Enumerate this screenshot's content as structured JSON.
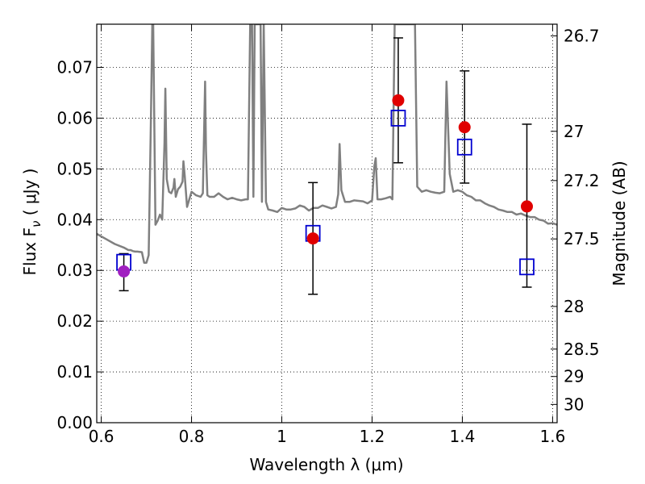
{
  "chart_data": {
    "type": "scatter",
    "xlabel": "Wavelength  λ (μm)",
    "ylabel": "Flux  F",
    "ylabel_sub": "ν",
    "ylabel_unit": " ( μJy )",
    "ylabel_right": "Magnitude (AB)",
    "xlim": [
      0.59,
      1.61
    ],
    "ylim": [
      0.0,
      0.0785
    ],
    "grid": true,
    "grid_style": "dotted",
    "x_ticks": [
      0.6,
      0.8,
      1.0,
      1.2,
      1.4,
      1.6
    ],
    "x_tick_labels": [
      "0.6",
      "0.8",
      "1",
      "1.2",
      "1.4",
      "1.6"
    ],
    "y_ticks": [
      0.0,
      0.01,
      0.02,
      0.03,
      0.04,
      0.05,
      0.06,
      0.07
    ],
    "y_tick_labels": [
      "0.00",
      "0.01",
      "0.02",
      "0.03",
      "0.04",
      "0.05",
      "0.06",
      "0.07"
    ],
    "right_ticks": [
      {
        "flux": 0.0762,
        "label": "26.7"
      },
      {
        "flux": 0.0574,
        "label": "27"
      },
      {
        "flux": 0.0477,
        "label": "27.2"
      },
      {
        "flux": 0.0362,
        "label": "27.5"
      },
      {
        "flux": 0.0229,
        "label": "28"
      },
      {
        "flux": 0.0145,
        "label": "28.5"
      },
      {
        "flux": 0.0091,
        "label": "29"
      },
      {
        "flux": 0.0036,
        "label": "30"
      }
    ],
    "series": [
      {
        "style": "model",
        "color": "#808080",
        "x": [
          0.59,
          0.61,
          0.63,
          0.65,
          0.66,
          0.665,
          0.67,
          0.675,
          0.68,
          0.69,
          0.695,
          0.7,
          0.705,
          0.71,
          0.713,
          0.715,
          0.72,
          0.725,
          0.73,
          0.735,
          0.74,
          0.742,
          0.745,
          0.75,
          0.755,
          0.76,
          0.762,
          0.765,
          0.77,
          0.775,
          0.78,
          0.782,
          0.785,
          0.79,
          0.8,
          0.81,
          0.82,
          0.825,
          0.83,
          0.832,
          0.835,
          0.84,
          0.85,
          0.86,
          0.87,
          0.88,
          0.89,
          0.9,
          0.91,
          0.92,
          0.925,
          0.93,
          0.934,
          0.937,
          0.94,
          0.945,
          0.95,
          0.953,
          0.956,
          0.96,
          0.965,
          0.97,
          0.98,
          0.99,
          1.0,
          1.01,
          1.02,
          1.03,
          1.04,
          1.05,
          1.06,
          1.07,
          1.08,
          1.09,
          1.1,
          1.11,
          1.12,
          1.125,
          1.128,
          1.132,
          1.14,
          1.15,
          1.16,
          1.17,
          1.18,
          1.19,
          1.2,
          1.205,
          1.208,
          1.212,
          1.22,
          1.23,
          1.24,
          1.245,
          1.25,
          1.252,
          1.255,
          1.26,
          1.265,
          1.27,
          1.275,
          1.28,
          1.285,
          1.29,
          1.295,
          1.3,
          1.31,
          1.32,
          1.33,
          1.34,
          1.35,
          1.36,
          1.365,
          1.368,
          1.372,
          1.38,
          1.39,
          1.4,
          1.41,
          1.42,
          1.43,
          1.44,
          1.45,
          1.46,
          1.47,
          1.48,
          1.49,
          1.5,
          1.51,
          1.52,
          1.53,
          1.54,
          1.55,
          1.56,
          1.57,
          1.58,
          1.59,
          1.6,
          1.61
        ],
        "y": [
          0.0372,
          0.0362,
          0.0352,
          0.0345,
          0.034,
          0.034,
          0.0338,
          0.0337,
          0.0337,
          0.0336,
          0.0315,
          0.0315,
          0.033,
          0.06,
          0.0785,
          0.0785,
          0.039,
          0.0398,
          0.041,
          0.04,
          0.055,
          0.0658,
          0.048,
          0.0455,
          0.0452,
          0.0463,
          0.048,
          0.0445,
          0.046,
          0.0465,
          0.0475,
          0.0515,
          0.0485,
          0.0425,
          0.0455,
          0.0448,
          0.0445,
          0.0452,
          0.0672,
          0.0535,
          0.0448,
          0.0445,
          0.0445,
          0.0452,
          0.0445,
          0.044,
          0.0443,
          0.044,
          0.0438,
          0.044,
          0.044,
          0.0785,
          0.0785,
          0.0445,
          0.0785,
          0.0785,
          0.0785,
          0.0785,
          0.0435,
          0.0785,
          0.0435,
          0.042,
          0.0418,
          0.0415,
          0.0423,
          0.042,
          0.042,
          0.0422,
          0.0428,
          0.0425,
          0.0418,
          0.0423,
          0.0423,
          0.0428,
          0.0425,
          0.0422,
          0.0425,
          0.045,
          0.0549,
          0.0458,
          0.0435,
          0.0435,
          0.0438,
          0.0437,
          0.0436,
          0.0432,
          0.0438,
          0.0505,
          0.0521,
          0.044,
          0.044,
          0.0442,
          0.0445,
          0.044,
          0.0785,
          0.0785,
          0.0785,
          0.0785,
          0.0785,
          0.0785,
          0.0785,
          0.0785,
          0.0785,
          0.0785,
          0.0785,
          0.0465,
          0.0455,
          0.0458,
          0.0455,
          0.0453,
          0.0452,
          0.0455,
          0.0672,
          0.0595,
          0.049,
          0.0455,
          0.0458,
          0.0455,
          0.0448,
          0.0445,
          0.0438,
          0.0438,
          0.0432,
          0.0428,
          0.0425,
          0.042,
          0.0418,
          0.0415,
          0.0415,
          0.041,
          0.0412,
          0.0408,
          0.0405,
          0.0405,
          0.04,
          0.0398,
          0.0392,
          0.0393,
          0.039
        ]
      },
      {
        "style": "observed",
        "color": "#e00000",
        "x": [
          1.069,
          1.258,
          1.405,
          1.543
        ],
        "y": [
          0.0363,
          0.0635,
          0.0582,
          0.0426
        ],
        "yerr_low": [
          0.0253,
          0.0512,
          0.0472,
          0.0267
        ],
        "yerr_high": [
          0.0473,
          0.0758,
          0.0693,
          0.0588
        ]
      },
      {
        "style": "observed",
        "color": "#a020c0",
        "x": [
          0.65
        ],
        "y": [
          0.0298
        ],
        "yerr_low": [
          0.026
        ],
        "yerr_high": [
          0.0333
        ]
      },
      {
        "style": "model_bandpass",
        "color": "#0000d0",
        "x": [
          0.65,
          1.069,
          1.258,
          1.405,
          1.543
        ],
        "y": [
          0.0316,
          0.0373,
          0.06,
          0.0543,
          0.0307
        ]
      }
    ]
  }
}
